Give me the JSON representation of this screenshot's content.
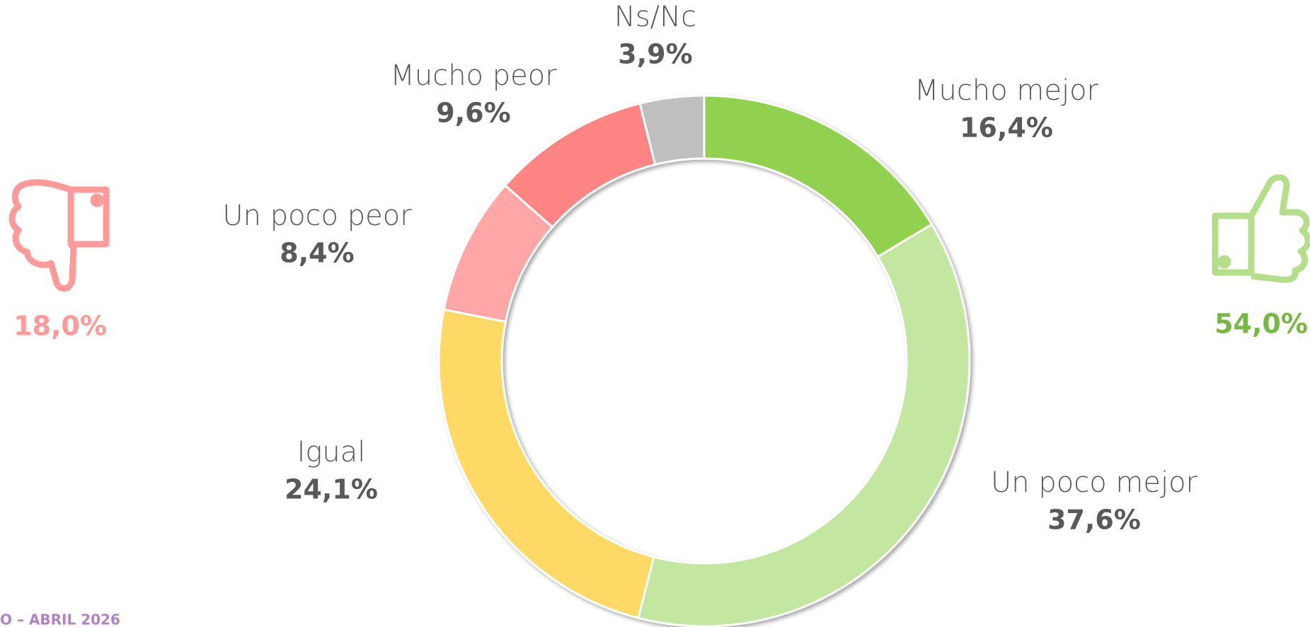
{
  "chart_data": {
    "type": "donut",
    "categories": [
      "Mucho mejor",
      "Un poco mejor",
      "Igual",
      "Un poco peor",
      "Mucho peor",
      "Ns/Nc"
    ],
    "values": [
      16.4,
      37.6,
      24.1,
      8.4,
      9.6,
      3.9
    ],
    "value_labels": [
      "16,4%",
      "37,6%",
      "24,1%",
      "8,4%",
      "9,6%",
      "3,9%"
    ],
    "colors": [
      "#92d050",
      "#c3e6a0",
      "#ffd966",
      "#ffa7a7",
      "#ff8585",
      "#bfbfbf"
    ],
    "summary": {
      "negative": "18,0%",
      "positive": "54,0%"
    },
    "footer": "O – ABRIL 2026"
  }
}
